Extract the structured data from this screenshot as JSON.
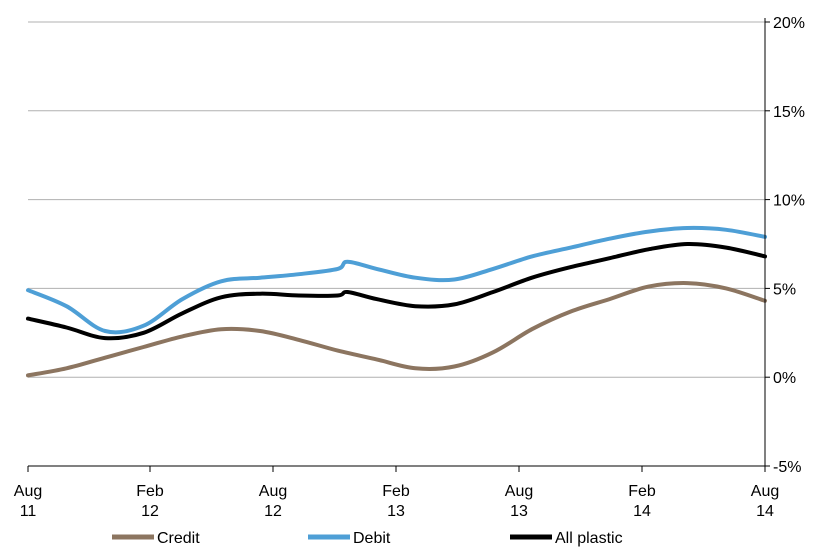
{
  "chart_data": {
    "type": "line",
    "title": "",
    "xlabel": "",
    "ylabel": "",
    "x_ticks": [
      {
        "line1": "Aug",
        "line2": "11",
        "month": 0
      },
      {
        "line1": "Feb",
        "line2": "12",
        "month": 6
      },
      {
        "line1": "Aug",
        "line2": "12",
        "month": 12
      },
      {
        "line1": "Feb",
        "line2": "13",
        "month": 18
      },
      {
        "line1": "Aug",
        "line2": "13",
        "month": 24
      },
      {
        "line1": "Feb",
        "line2": "14",
        "month": 30
      },
      {
        "line1": "Aug",
        "line2": "14",
        "month": 36
      }
    ],
    "x_range": [
      0,
      36
    ],
    "y_ticks": [
      20,
      15,
      10,
      5,
      0,
      -5
    ],
    "y_tick_labels": [
      "20%",
      "15%",
      "10%",
      "5%",
      "0%",
      "-5%"
    ],
    "ylim": [
      -5,
      20
    ],
    "grid": true,
    "legend_position": "bottom",
    "series": [
      {
        "name": "Credit",
        "color": "#8c7560",
        "points": [
          [
            0,
            0.1
          ],
          [
            2,
            0.5
          ],
          [
            4,
            1.1
          ],
          [
            6,
            1.7
          ],
          [
            8,
            2.3
          ],
          [
            10,
            2.7
          ],
          [
            12,
            2.6
          ],
          [
            14,
            2.1
          ],
          [
            16,
            1.5
          ],
          [
            18,
            1.0
          ],
          [
            20,
            0.5
          ],
          [
            22,
            0.6
          ],
          [
            24,
            1.4
          ],
          [
            26,
            2.7
          ],
          [
            28,
            3.7
          ],
          [
            30,
            4.4
          ],
          [
            32,
            5.1
          ],
          [
            34,
            5.3
          ],
          [
            36,
            5.0
          ],
          [
            38,
            4.3
          ]
        ]
      },
      {
        "name": "Debit",
        "color": "#4e9fd6",
        "points": [
          [
            0,
            4.9
          ],
          [
            2,
            4.0
          ],
          [
            4,
            2.6
          ],
          [
            6,
            2.9
          ],
          [
            8,
            4.4
          ],
          [
            10,
            5.4
          ],
          [
            12,
            5.6
          ],
          [
            14,
            5.8
          ],
          [
            16,
            6.1
          ],
          [
            16.5,
            6.5
          ],
          [
            18,
            6.1
          ],
          [
            20,
            5.6
          ],
          [
            22,
            5.5
          ],
          [
            24,
            6.1
          ],
          [
            26,
            6.8
          ],
          [
            28,
            7.3
          ],
          [
            30,
            7.8
          ],
          [
            32,
            8.2
          ],
          [
            34,
            8.4
          ],
          [
            36,
            8.3
          ],
          [
            38,
            7.9
          ]
        ]
      },
      {
        "name": "All plastic",
        "color": "#000000",
        "points": [
          [
            0,
            3.3
          ],
          [
            2,
            2.8
          ],
          [
            4,
            2.2
          ],
          [
            6,
            2.5
          ],
          [
            8,
            3.6
          ],
          [
            10,
            4.5
          ],
          [
            12,
            4.7
          ],
          [
            14,
            4.6
          ],
          [
            16,
            4.6
          ],
          [
            16.5,
            4.8
          ],
          [
            18,
            4.4
          ],
          [
            20,
            4.0
          ],
          [
            22,
            4.1
          ],
          [
            24,
            4.8
          ],
          [
            26,
            5.6
          ],
          [
            28,
            6.2
          ],
          [
            30,
            6.7
          ],
          [
            32,
            7.2
          ],
          [
            34,
            7.5
          ],
          [
            36,
            7.3
          ],
          [
            38,
            6.8
          ]
        ]
      }
    ]
  }
}
